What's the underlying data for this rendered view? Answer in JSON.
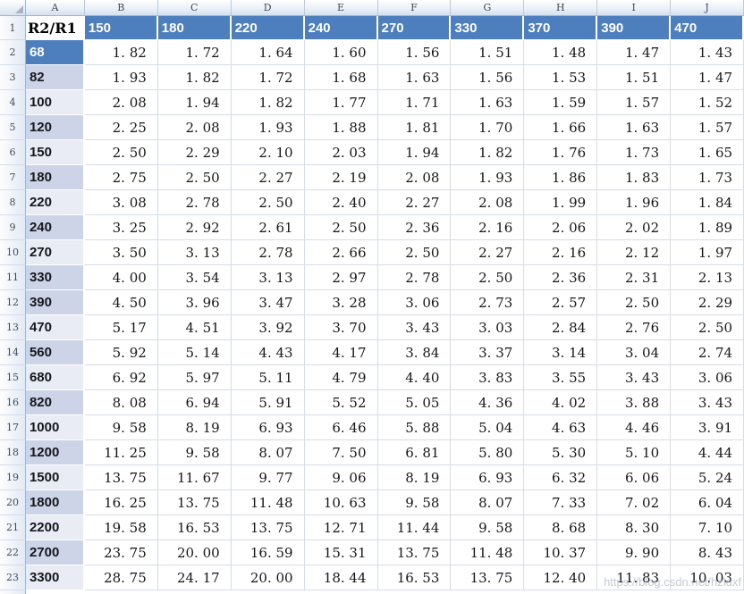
{
  "sheet": {
    "column_letters": [
      "A",
      "B",
      "C",
      "D",
      "E",
      "F",
      "G",
      "H",
      "I",
      "J"
    ],
    "row_numbers": [
      "1",
      "2",
      "3",
      "4",
      "5",
      "6",
      "7",
      "8",
      "9",
      "10",
      "11",
      "12",
      "13",
      "14",
      "15",
      "16",
      "17",
      "18",
      "19",
      "20",
      "21",
      "22",
      "23"
    ],
    "header_row": {
      "label": "R2/R1",
      "values": [
        "150",
        "180",
        "220",
        "240",
        "270",
        "330",
        "370",
        "390",
        "470"
      ]
    },
    "rows": [
      {
        "label": "68",
        "shade": "blue",
        "values": [
          "1.82",
          "1.72",
          "1.64",
          "1.60",
          "1.56",
          "1.51",
          "1.48",
          "1.47",
          "1.43"
        ]
      },
      {
        "label": "82",
        "shade": "dark",
        "values": [
          "1.93",
          "1.82",
          "1.72",
          "1.68",
          "1.63",
          "1.56",
          "1.53",
          "1.51",
          "1.47"
        ]
      },
      {
        "label": "100",
        "shade": "light",
        "values": [
          "2.08",
          "1.94",
          "1.82",
          "1.77",
          "1.71",
          "1.63",
          "1.59",
          "1.57",
          "1.52"
        ]
      },
      {
        "label": "120",
        "shade": "dark",
        "values": [
          "2.25",
          "2.08",
          "1.93",
          "1.88",
          "1.81",
          "1.70",
          "1.66",
          "1.63",
          "1.57"
        ]
      },
      {
        "label": "150",
        "shade": "light",
        "values": [
          "2.50",
          "2.29",
          "2.10",
          "2.03",
          "1.94",
          "1.82",
          "1.76",
          "1.73",
          "1.65"
        ]
      },
      {
        "label": "180",
        "shade": "dark",
        "values": [
          "2.75",
          "2.50",
          "2.27",
          "2.19",
          "2.08",
          "1.93",
          "1.86",
          "1.83",
          "1.73"
        ]
      },
      {
        "label": "220",
        "shade": "light",
        "values": [
          "3.08",
          "2.78",
          "2.50",
          "2.40",
          "2.27",
          "2.08",
          "1.99",
          "1.96",
          "1.84"
        ]
      },
      {
        "label": "240",
        "shade": "dark",
        "values": [
          "3.25",
          "2.92",
          "2.61",
          "2.50",
          "2.36",
          "2.16",
          "2.06",
          "2.02",
          "1.89"
        ]
      },
      {
        "label": "270",
        "shade": "light",
        "values": [
          "3.50",
          "3.13",
          "2.78",
          "2.66",
          "2.50",
          "2.27",
          "2.16",
          "2.12",
          "1.97"
        ]
      },
      {
        "label": "330",
        "shade": "dark",
        "values": [
          "4.00",
          "3.54",
          "3.13",
          "2.97",
          "2.78",
          "2.50",
          "2.36",
          "2.31",
          "2.13"
        ]
      },
      {
        "label": "390",
        "shade": "dark",
        "values": [
          "4.50",
          "3.96",
          "3.47",
          "3.28",
          "3.06",
          "2.73",
          "2.57",
          "2.50",
          "2.29"
        ]
      },
      {
        "label": "470",
        "shade": "light",
        "values": [
          "5.17",
          "4.51",
          "3.92",
          "3.70",
          "3.43",
          "3.03",
          "2.84",
          "2.76",
          "2.50"
        ]
      },
      {
        "label": "560",
        "shade": "dark",
        "values": [
          "5.92",
          "5.14",
          "4.43",
          "4.17",
          "3.84",
          "3.37",
          "3.14",
          "3.04",
          "2.74"
        ]
      },
      {
        "label": "680",
        "shade": "light",
        "values": [
          "6.92",
          "5.97",
          "5.11",
          "4.79",
          "4.40",
          "3.83",
          "3.55",
          "3.43",
          "3.06"
        ]
      },
      {
        "label": "820",
        "shade": "dark",
        "values": [
          "8.08",
          "6.94",
          "5.91",
          "5.52",
          "5.05",
          "4.36",
          "4.02",
          "3.88",
          "3.43"
        ]
      },
      {
        "label": "1000",
        "shade": "light",
        "values": [
          "9.58",
          "8.19",
          "6.93",
          "6.46",
          "5.88",
          "5.04",
          "4.63",
          "4.46",
          "3.91"
        ]
      },
      {
        "label": "1200",
        "shade": "dark",
        "values": [
          "11.25",
          "9.58",
          "8.07",
          "7.50",
          "6.81",
          "5.80",
          "5.30",
          "5.10",
          "4.44"
        ]
      },
      {
        "label": "1500",
        "shade": "light",
        "values": [
          "13.75",
          "11.67",
          "9.77",
          "9.06",
          "8.19",
          "6.93",
          "6.32",
          "6.06",
          "5.24"
        ]
      },
      {
        "label": "1800",
        "shade": "dark",
        "values": [
          "16.25",
          "13.75",
          "11.48",
          "10.63",
          "9.58",
          "8.07",
          "7.33",
          "7.02",
          "6.04"
        ]
      },
      {
        "label": "2200",
        "shade": "light",
        "values": [
          "19.58",
          "16.53",
          "13.75",
          "12.71",
          "11.44",
          "9.58",
          "8.68",
          "8.30",
          "7.10"
        ]
      },
      {
        "label": "2700",
        "shade": "dark",
        "values": [
          "23.75",
          "20.00",
          "16.59",
          "15.31",
          "13.75",
          "11.48",
          "10.37",
          "9.90",
          "8.43"
        ]
      },
      {
        "label": "3300",
        "shade": "light",
        "values": [
          "28.75",
          "24.17",
          "20.00",
          "18.44",
          "16.53",
          "13.75",
          "12.40",
          "11.83",
          "10.03"
        ]
      }
    ],
    "watermark": "https://blog.csdn.net/hzldxf",
    "colors": {
      "header_blue": "#4d7ebd",
      "band_dark": "#cdd4e7",
      "band_light": "#e9ecf4",
      "gridline": "#d7dde8",
      "frame_border": "#9eb6ce",
      "frame_text": "#3f4a59",
      "cell_text": "#161616"
    }
  }
}
